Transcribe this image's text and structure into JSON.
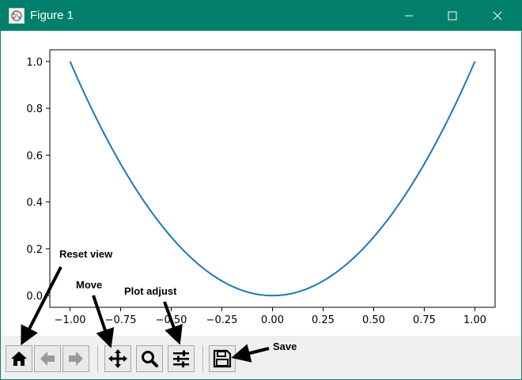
{
  "window": {
    "title": "Figure 1",
    "app_icon": "matplotlib-figure-icon",
    "controls": [
      "minimize-icon",
      "maximize-icon",
      "close-icon"
    ],
    "titlebar_color": "#00806a"
  },
  "toolbar": {
    "buttons": [
      {
        "name": "home",
        "icon": "home-icon"
      },
      {
        "name": "back",
        "icon": "arrow-left-icon"
      },
      {
        "name": "forward",
        "icon": "arrow-right-icon"
      },
      {
        "name": "pan",
        "icon": "move-icon"
      },
      {
        "name": "zoom",
        "icon": "magnifier-icon"
      },
      {
        "name": "subplots",
        "icon": "sliders-icon"
      },
      {
        "name": "save",
        "icon": "floppy-disk-icon"
      }
    ]
  },
  "annotations": {
    "reset_view": "Reset view",
    "move": "Move",
    "plot_adjust": "Plot adjust",
    "save": "Save"
  },
  "chart_data": {
    "type": "line",
    "title": "",
    "xlabel": "",
    "ylabel": "",
    "function": "y = x^2",
    "x": [
      -1.0,
      -0.75,
      -0.5,
      -0.25,
      0.0,
      0.25,
      0.5,
      0.75,
      1.0
    ],
    "y": [
      1.0,
      0.5625,
      0.25,
      0.0625,
      0.0,
      0.0625,
      0.25,
      0.5625,
      1.0
    ],
    "xlim": [
      -1.1,
      1.1
    ],
    "ylim": [
      -0.05,
      1.05
    ],
    "xticks": [
      "−1.00",
      "−0.75",
      "−0.50",
      "−0.25",
      "0.00",
      "0.25",
      "0.50",
      "0.75",
      "1.00"
    ],
    "xtick_values": [
      -1.0,
      -0.75,
      -0.5,
      -0.25,
      0.0,
      0.25,
      0.5,
      0.75,
      1.0
    ],
    "yticks": [
      "0.0",
      "0.2",
      "0.4",
      "0.6",
      "0.8",
      "1.0"
    ],
    "ytick_values": [
      0.0,
      0.2,
      0.4,
      0.6,
      0.8,
      1.0
    ],
    "grid": false,
    "line_color": "#1f77b4"
  }
}
